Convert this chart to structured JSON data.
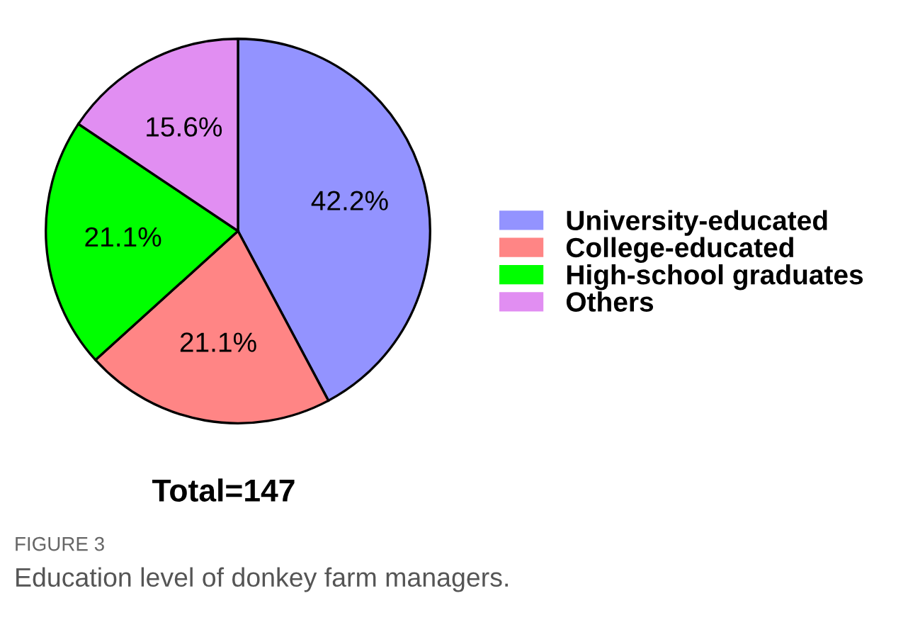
{
  "chart_data": {
    "type": "pie",
    "categories": [
      "University-educated",
      "College-educated",
      "High-school graduates",
      "Others"
    ],
    "values": [
      42.2,
      21.1,
      21.1,
      15.6
    ],
    "colors": [
      "#9393ff",
      "#ff8585",
      "#00ff00",
      "#e18ef2"
    ],
    "value_labels": [
      "42.2%",
      "21.1%",
      "21.1%",
      "15.6%"
    ],
    "legend": "right",
    "annotations": [
      "Total=147",
      "FIGURE 3",
      "Education level of donkey farm managers."
    ]
  }
}
